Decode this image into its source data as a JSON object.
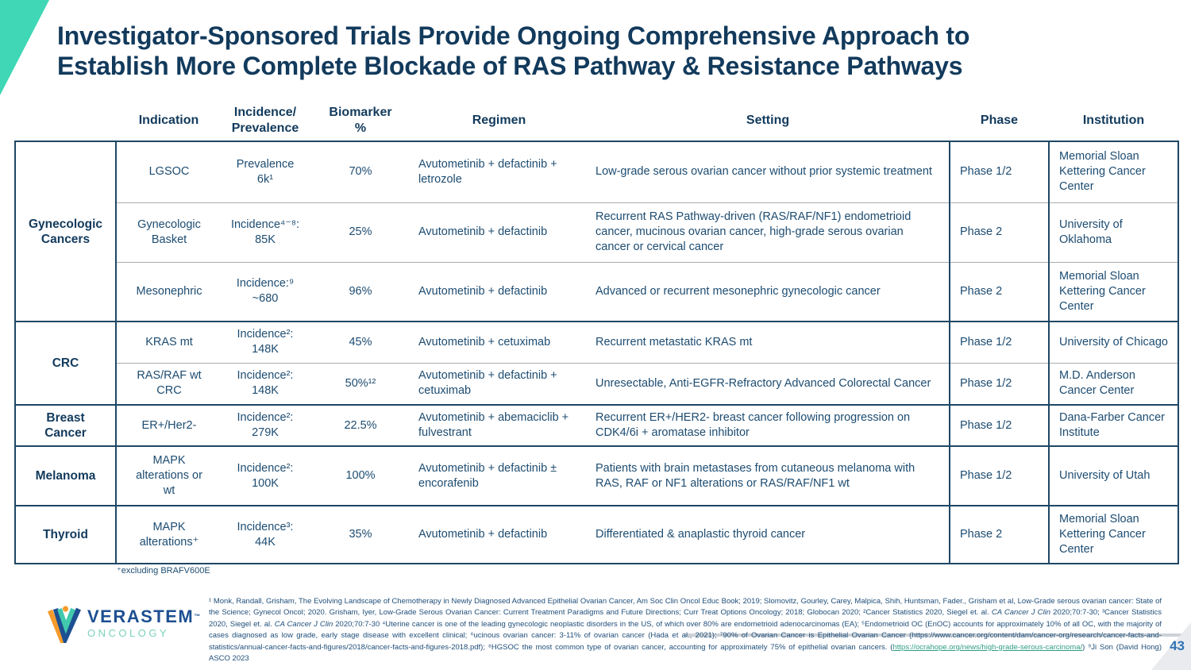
{
  "slide": {
    "title": "Investigator-Sponsored Trials Provide Ongoing Comprehensive Approach to\nEstablish More Complete Blockade of RAS Pathway & Resistance Pathways",
    "page_number": "43",
    "footnote": "⁺excluding BRAFV600E"
  },
  "colors": {
    "accent_teal": "#3fd7b5",
    "title_navy": "#123a5c",
    "table_text_navy": "#1d4c71",
    "table_border_navy": "#1e4765",
    "row_divider_gray": "#a9adb2",
    "link_teal": "#2f9e82",
    "page_number_blue": "#2e74b5"
  },
  "logo": {
    "brand": "VERASTEM",
    "tm": "™",
    "division": "ONCOLOGY"
  },
  "table": {
    "headers": {
      "indication": "Indication",
      "incidence": "Incidence/\nPrevalence",
      "biomarker": "Biomarker\n%",
      "regimen": "Regimen",
      "setting": "Setting",
      "phase": "Phase",
      "institution": "Institution"
    },
    "groups": [
      {
        "label": "Gynecologic\nCancers",
        "rows": [
          {
            "indication": "LGSOC",
            "incidence": "Prevalence\n6k¹",
            "biomarker": "70%",
            "regimen": "Avutometinib + defactinib + letrozole",
            "setting": "Low-grade serous ovarian cancer without prior systemic treatment",
            "phase": "Phase 1/2",
            "institution": "Memorial Sloan Kettering Cancer Center"
          },
          {
            "indication": "Gynecologic\nBasket",
            "incidence": "Incidence⁴⁻⁸:\n85K",
            "biomarker": "25%",
            "regimen": "Avutometinib + defactinib",
            "setting": "Recurrent RAS Pathway-driven (RAS/RAF/NF1) endometrioid cancer, mucinous ovarian cancer, high-grade serous ovarian cancer or cervical cancer",
            "phase": "Phase 2",
            "institution": "University of Oklahoma"
          },
          {
            "indication": "Mesonephric",
            "incidence": "Incidence:⁹\n~680",
            "biomarker": "96%",
            "regimen": "Avutometinib + defactinib",
            "setting": "Advanced or recurrent mesonephric gynecologic cancer",
            "phase": "Phase 2",
            "institution": "Memorial Sloan Kettering Cancer Center"
          }
        ]
      },
      {
        "label": "CRC",
        "rows": [
          {
            "indication": "KRAS mt",
            "incidence": "Incidence²:\n148K",
            "biomarker": "45%",
            "regimen": "Avutometinib + cetuximab",
            "setting": "Recurrent metastatic KRAS mt",
            "phase": "Phase 1/2",
            "institution": "University of Chicago"
          },
          {
            "indication": "RAS/RAF wt\nCRC",
            "incidence": "Incidence²:\n148K",
            "biomarker": "50%¹²",
            "regimen": "Avutometinib + defactinib + cetuximab",
            "setting": "Unresectable, Anti-EGFR-Refractory Advanced Colorectal Cancer",
            "phase": "Phase 1/2",
            "institution": "M.D. Anderson Cancer Center"
          }
        ]
      },
      {
        "label": "Breast\nCancer",
        "rows": [
          {
            "indication": "ER+/Her2-",
            "incidence": "Incidence²:\n279K",
            "biomarker": "22.5%",
            "regimen": "Avutometinib + abemaciclib + fulvestrant",
            "setting": "Recurrent ER+/HER2- breast cancer following progression on CDK4/6i + aromatase inhibitor",
            "phase": "Phase 1/2",
            "institution": "Dana-Farber Cancer Institute"
          }
        ]
      },
      {
        "label": "Melanoma",
        "rows": [
          {
            "indication": "MAPK\nalterations or\nwt",
            "incidence": "Incidence²:\n100K",
            "biomarker": "100%",
            "regimen": "Avutometinib + defactinib ± encorafenib",
            "setting": "Patients with brain metastases from cutaneous melanoma with RAS, RAF or NF1 alterations or RAS/RAF/NF1 wt",
            "phase": "Phase 1/2",
            "institution": "University of Utah"
          }
        ]
      },
      {
        "label": "Thyroid",
        "rows": [
          {
            "indication": "MAPK\nalterations⁺",
            "incidence": "Incidence³:\n44K",
            "biomarker": "35%",
            "regimen": "Avutometinib + defactinib",
            "setting": "Differentiated & anaplastic thyroid cancer",
            "phase": "Phase 2",
            "institution": "Memorial Sloan Kettering Cancer Center"
          }
        ]
      }
    ]
  },
  "references": {
    "segments": [
      {
        "text": "¹ Monk, Randall, Grisham, The Evolving Landscape of Chemotherapy in Newly Diagnosed Advanced Epithelial Ovarian Cancer, Am Soc Clin Oncol Educ Book; 2019; Slomovitz, Gourley, Carey, Malpica, Shih, Huntsman, Fader., Grisham et al, Low-Grade serous ovarian cancer: State of the Science; Gynecol Oncol; 2020. Grisham, Iyer, Low-Grade Serous Ovarian Cancer: Current Treatment Paradigms and Future Directions; Curr Treat Options Oncology; 2018; Globocan 2020; ²Cancer Statistics 2020, Siegel et. al. "
      },
      {
        "text": "CA Cancer J Clin",
        "style": "italic"
      },
      {
        "text": " 2020;70:7-30; ³Cancer Statistics 2020, Siegel et. al. "
      },
      {
        "text": "CA Cancer J Clin",
        "style": "italic"
      },
      {
        "text": " 2020;70:7-30 ⁴Uterine cancer is one of the leading gynecologic neoplastic disorders in the US, of which over 80% are endometrioid adenocarcinomas (EA); ⁵Endometrioid OC (EnOC) accounts for approximately 10% of all OC, with the majority of cases diagnosed as low grade, early stage disease with excellent clinical; ⁶ucinous ovarian cancer: 3-11% of ovarian cancer (Hada et al., 2021); ⁷90% of Ovarian Cancer is Epithelial Ovarian Cancer (https://www.cancer.org/content/dam/cancer-org/research/cancer-facts-and-statistics/annual-cancer-facts-and-figures/2018/cancer-facts-and-figures-2018.pdf); ⁸HGSOC the most common type of ovarian cancer, accounting for approximately 75% of epithelial ovarian cancers. ("
      },
      {
        "text": "https://ocrahope.org/news/high-grade-serous-carcinoma/",
        "style": "link"
      },
      {
        "text": ") ⁹Ji Son (David Hong) ASCO 2023"
      }
    ]
  }
}
